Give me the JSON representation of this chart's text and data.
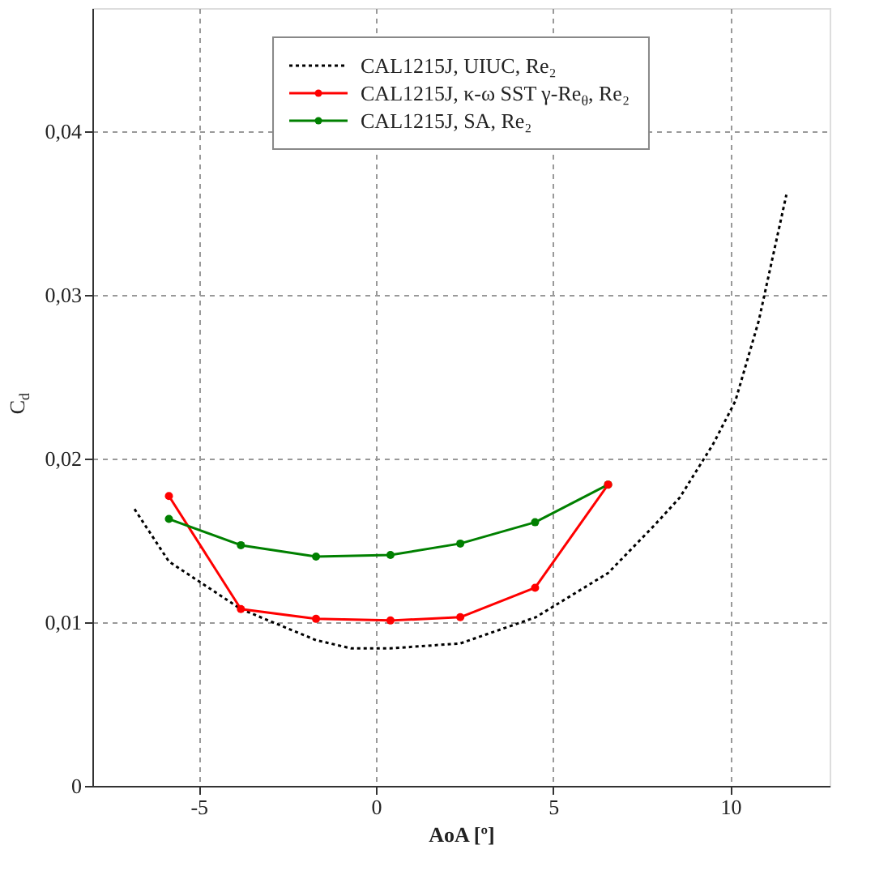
{
  "chart_data": {
    "type": "line",
    "xlabel": "AoA [º]",
    "ylabel": "C$_{d}$",
    "xlim": [
      -8,
      12.8
    ],
    "ylim": [
      0,
      0.0475
    ],
    "xticks": [
      -5,
      0,
      5,
      10
    ],
    "yticks": [
      {
        "value": 0,
        "label": "0"
      },
      {
        "value": 0.01,
        "label": "0,01"
      },
      {
        "value": 0.02,
        "label": "0,02"
      },
      {
        "value": 0.03,
        "label": "0,03"
      },
      {
        "value": 0.04,
        "label": "0,04"
      }
    ],
    "grid": true,
    "legend": "top",
    "series": [
      {
        "name": "CAL1215J, UIUC, Re₂",
        "color": "#000000",
        "line_style": "dotted",
        "marker": "none",
        "x": [
          -6.81,
          -5.84,
          -3.81,
          -1.69,
          -0.7,
          0.41,
          2.38,
          4.51,
          6.55,
          7.85,
          8.57,
          9.52,
          10.14,
          10.8,
          11.58
        ],
        "values": [
          0.0169,
          0.0137,
          0.0108,
          0.0089,
          0.0084,
          0.0084,
          0.0087,
          0.0103,
          0.013,
          0.0159,
          0.0176,
          0.0209,
          0.0235,
          0.0284,
          0.0361
        ]
      },
      {
        "name": "CAL1215J, κ-ω SST γ-Re$_{θ}$, Re₂",
        "color": "#ff0000",
        "line_style": "solid",
        "marker": "circle",
        "x": [
          -5.84,
          -3.81,
          -1.69,
          0.41,
          2.38,
          4.49,
          6.55
        ],
        "values": [
          0.0177,
          0.0108,
          0.0102,
          0.0101,
          0.0103,
          0.0121,
          0.0184
        ]
      },
      {
        "name": "CAL1215J, SA, Re₂",
        "color": "#008000",
        "line_style": "solid",
        "marker": "circle",
        "x": [
          -5.84,
          -3.81,
          -1.69,
          0.41,
          2.38,
          4.49,
          6.55
        ],
        "values": [
          0.0163,
          0.0147,
          0.014,
          0.0141,
          0.0148,
          0.0161,
          0.0184
        ]
      }
    ]
  }
}
